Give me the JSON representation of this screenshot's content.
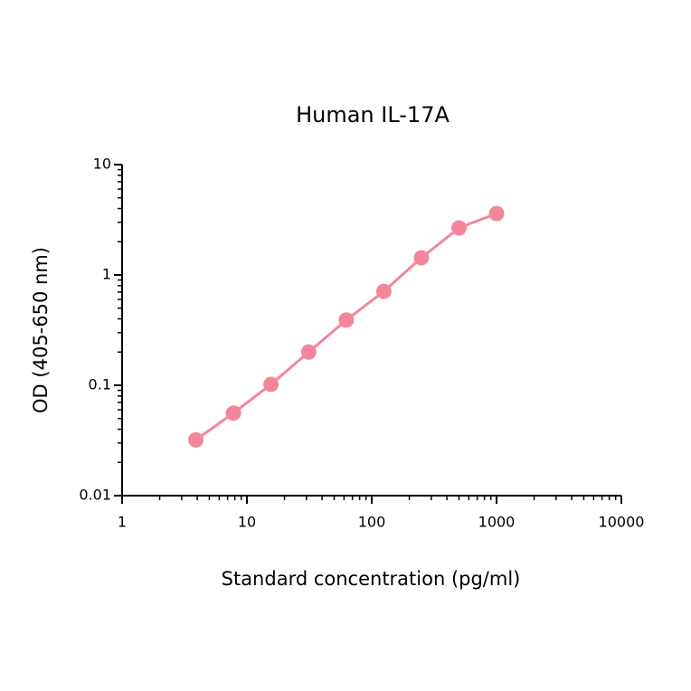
{
  "chart_data": {
    "type": "line",
    "title": "Human IL-17A",
    "x_label": "Standard concentration (pg/ml)",
    "y_label": "OD (405-650 nm)",
    "x": [
      3.9,
      7.8,
      15.6,
      31.25,
      62.5,
      125,
      250,
      500,
      1000
    ],
    "series": [
      {
        "name": "Human IL-17A",
        "color": "#f4869a",
        "values": [
          0.032,
          0.056,
          0.102,
          0.2,
          0.39,
          0.71,
          1.43,
          2.67,
          3.6
        ]
      }
    ],
    "xlim": [
      1,
      10000
    ],
    "xticks": [
      1,
      10,
      100,
      1000,
      10000
    ],
    "ylim": [
      0.01,
      10
    ],
    "yticks": [
      0.01,
      0.1,
      1,
      10
    ],
    "xscale": "log",
    "yscale": "log",
    "grid": false,
    "markers": true
  }
}
